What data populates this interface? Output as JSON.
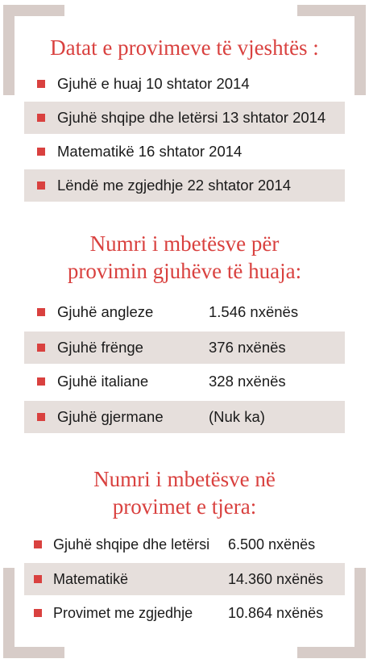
{
  "sections": [
    {
      "title": "Datat e provimeve të vjeshtës :",
      "items": [
        {
          "text": "Gjuhë e huaj 10 shtator 2014"
        },
        {
          "text": "Gjuhë shqipe dhe letërsi 13 shtator 2014"
        },
        {
          "text": "Matematikë 16 shtator 2014"
        },
        {
          "text": "Lëndë me zgjedhje 22 shtator 2014"
        }
      ]
    },
    {
      "title_line1": "Numri i mbetësve për",
      "title_line2": "provimin gjuhëve të huaja:",
      "items": [
        {
          "label": "Gjuhë angleze",
          "value": "1.546 nxënës"
        },
        {
          "label": "Gjuhë frënge",
          "value": "376 nxënës"
        },
        {
          "label": "Gjuhë italiane",
          "value": "328 nxënës"
        },
        {
          "label": "Gjuhë gjermane",
          "value": "(Nuk ka)"
        }
      ]
    },
    {
      "title_line1": "Numri i mbetësve në",
      "title_line2": "provimet e tjera:",
      "items": [
        {
          "label": "Gjuhë shqipe dhe letërsi",
          "value": "6.500 nxënës"
        },
        {
          "label": "Matematikë",
          "value": "14.360 nxënës"
        },
        {
          "label": "Provimet me zgjedhje",
          "value": "10.864 nxënës"
        }
      ]
    }
  ],
  "colors": {
    "accent": "#d9413f",
    "shade": "#e6dfdc",
    "frame": "#d7ccc8"
  },
  "icons": {
    "bullet": "red-square-bullet-icon"
  }
}
